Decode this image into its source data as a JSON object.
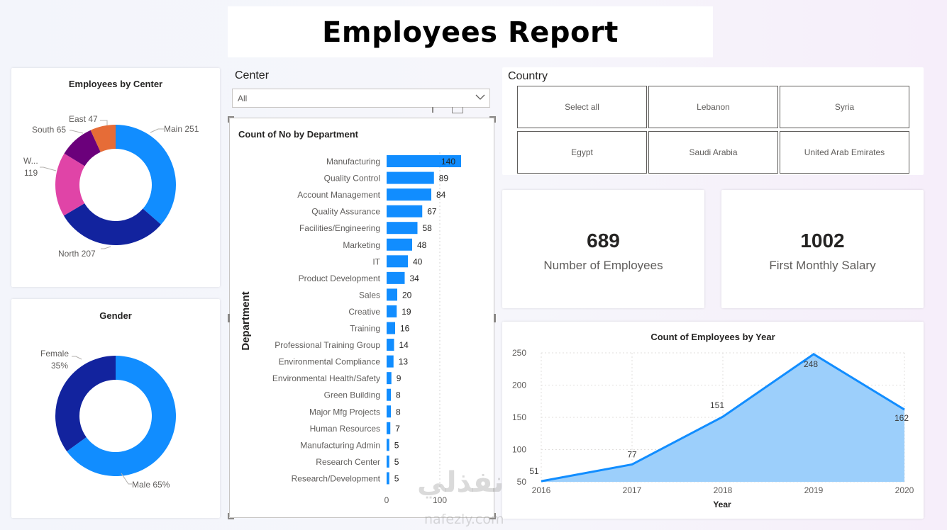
{
  "report_title": "Employees Report",
  "center_donut": {
    "title": "Employees by Center",
    "slices": [
      {
        "name": "Main",
        "value": 251,
        "label": "Main 251",
        "color": "#118dff"
      },
      {
        "name": "North",
        "value": 207,
        "label": "North 207",
        "color": "#12239e"
      },
      {
        "name": "W...",
        "value": 119,
        "label_line1": "W...",
        "label_line2": "119",
        "color": "#e044a7"
      },
      {
        "name": "South",
        "value": 65,
        "label": "South 65",
        "color": "#6b007b"
      },
      {
        "name": "East",
        "value": 47,
        "label": "East 47",
        "color": "#e66c37"
      }
    ]
  },
  "gender_donut": {
    "title": "Gender",
    "slices": [
      {
        "name": "Male",
        "percent": 65,
        "label": "Male 65%",
        "color": "#118dff"
      },
      {
        "name": "Female",
        "percent": 35,
        "label_line1": "Female",
        "label_line2": "35%",
        "color": "#12239e"
      }
    ]
  },
  "center_slicer": {
    "header": "Center",
    "selected": "All"
  },
  "country_slicer": {
    "header": "Country",
    "options": [
      "Select all",
      "Lebanon",
      "Syria",
      "Egypt",
      "Saudi Arabia",
      "United Arab Emirates"
    ]
  },
  "kpis": [
    {
      "value": "689",
      "label": "Number of Employees"
    },
    {
      "value": "1002",
      "label": "First Monthly Salary"
    }
  ],
  "chart_data": [
    {
      "type": "bar",
      "orientation": "horizontal",
      "title": "Count of No by Department",
      "ylabel": "Department",
      "xlabel": "",
      "xlim": [
        0,
        140
      ],
      "x_ticks": [
        "0",
        "100"
      ],
      "color": "#118dff",
      "categories": [
        "Manufacturing",
        "Quality Control",
        "Account Management",
        "Quality Assurance",
        "Facilities/Engineering",
        "Marketing",
        "IT",
        "Product Development",
        "Sales",
        "Creative",
        "Training",
        "Professional Training Group",
        "Environmental Compliance",
        "Environmental Health/Safety",
        "Green Building",
        "Major Mfg Projects",
        "Human Resources",
        "Manufacturing Admin",
        "Research Center",
        "Research/Development"
      ],
      "values": [
        140,
        89,
        84,
        67,
        58,
        48,
        40,
        34,
        20,
        19,
        16,
        14,
        13,
        9,
        8,
        8,
        7,
        5,
        5,
        5
      ]
    },
    {
      "type": "area",
      "title": "Count of Employees by Year",
      "xlabel": "Year",
      "ylabel": "",
      "x": [
        "2016",
        "2017",
        "2018",
        "2019",
        "2020"
      ],
      "values": [
        51,
        77,
        151,
        248,
        162
      ],
      "ylim": [
        50,
        250
      ],
      "y_ticks": [
        "50",
        "100",
        "150",
        "200",
        "250"
      ],
      "color": "#118dff",
      "fill_color": "#9ccffb",
      "grid": true
    }
  ],
  "watermark": {
    "arabic": "نفذلي",
    "latin": "nafezly.com"
  }
}
